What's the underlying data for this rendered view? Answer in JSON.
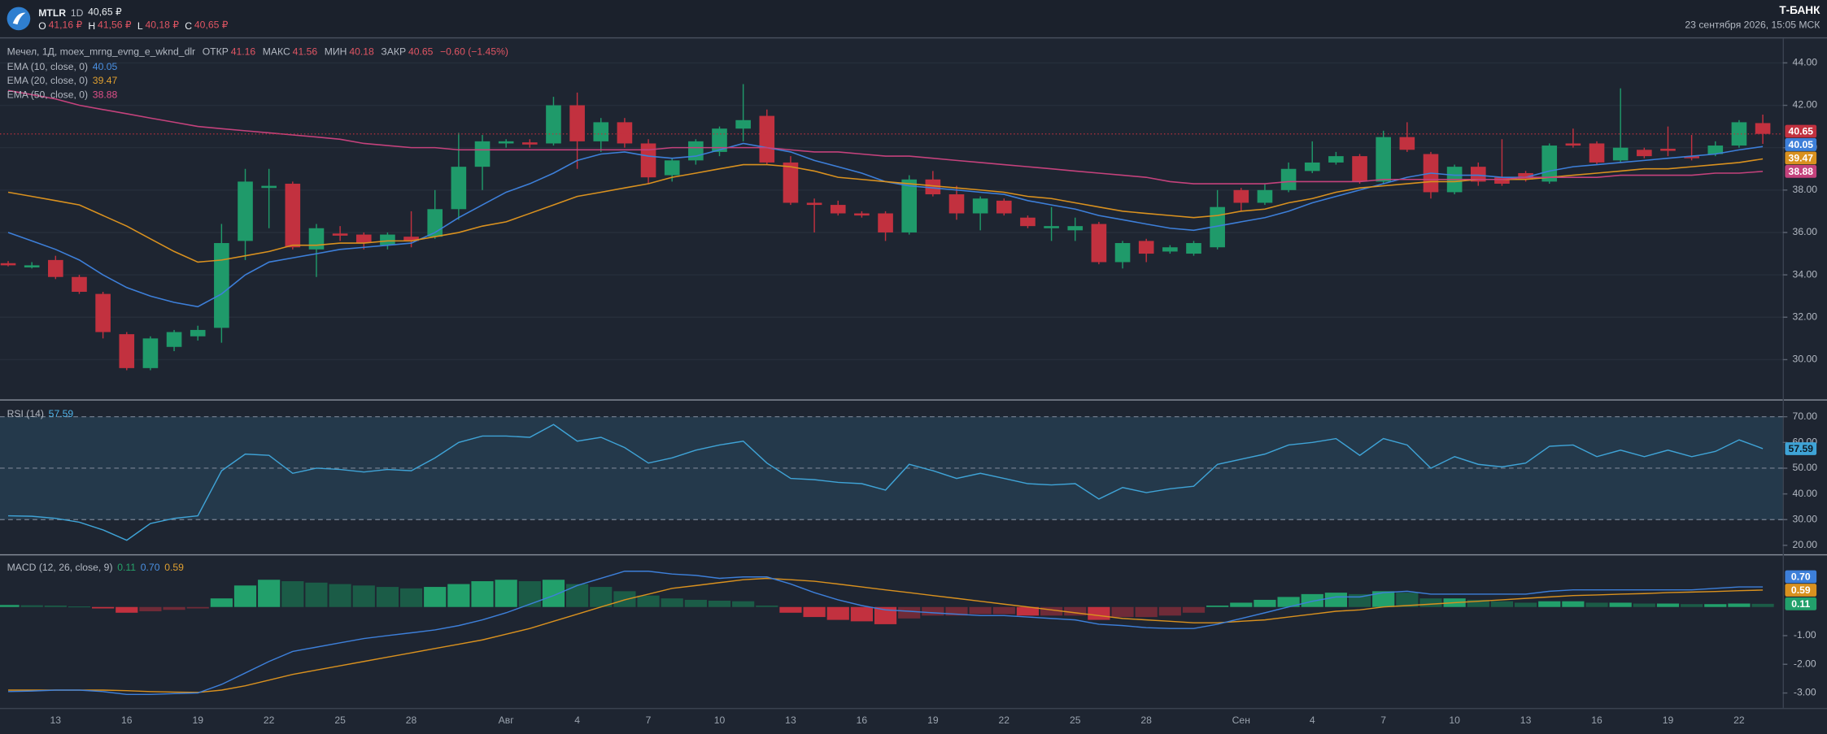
{
  "header": {
    "ticker": "MTLR",
    "interval": "1D",
    "price": "40,65 ₽",
    "ohlc": [
      {
        "key": "O",
        "value": "41,16 ₽"
      },
      {
        "key": "H",
        "value": "41,56 ₽"
      },
      {
        "key": "L",
        "value": "40,18 ₽"
      },
      {
        "key": "C",
        "value": "40,65 ₽"
      }
    ],
    "brand": "Т-БАНК",
    "datetime": "23 сентября 2026, 15:05 МСК"
  },
  "chart_data": [
    {
      "type": "candlestick",
      "title": "Мечел, 1Д, moex_mrng_evng_e_wknd_dlr",
      "stats": [
        {
          "key": "ОТКР",
          "value": "41.16"
        },
        {
          "key": "МАКС",
          "value": "41.56"
        },
        {
          "key": "МИН",
          "value": "40.18"
        },
        {
          "key": "ЗАКР",
          "value": "40.65"
        }
      ],
      "change": "−0.60 (−1.45%)",
      "up_color": "#1f9a6a",
      "down_color": "#c2313f",
      "last_label": "40.65",
      "open": [
        34.55,
        34.35,
        34.7,
        33.9,
        33.1,
        31.2,
        29.6,
        30.6,
        31.1,
        31.5,
        35.6,
        38.1,
        38.3,
        35.2,
        35.95,
        35.9,
        35.4,
        35.8,
        35.8,
        37.1,
        39.1,
        40.2,
        40.25,
        40.2,
        42.0,
        40.3,
        41.2,
        40.2,
        38.7,
        39.4,
        39.8,
        40.9,
        41.5,
        39.3,
        37.4,
        37.3,
        36.9,
        36.9,
        36.0,
        38.5,
        37.8,
        36.9,
        37.5,
        36.7,
        36.2,
        36.1,
        36.4,
        34.6,
        35.6,
        35.1,
        35.0,
        35.3,
        38.0,
        37.4,
        38.0,
        38.9,
        39.3,
        39.6,
        38.4,
        40.5,
        39.7,
        37.9,
        39.1,
        38.6,
        38.8,
        38.4,
        40.2,
        40.2,
        39.4,
        39.9,
        39.95,
        39.6,
        39.7,
        40.1,
        41.16
      ],
      "high": [
        34.65,
        34.6,
        34.9,
        34.0,
        33.2,
        31.3,
        31.1,
        31.4,
        31.6,
        36.4,
        39.0,
        39.0,
        38.4,
        36.4,
        36.3,
        36.0,
        36.0,
        37.0,
        38.0,
        40.7,
        40.6,
        40.4,
        40.4,
        42.4,
        42.6,
        41.4,
        41.4,
        40.4,
        39.5,
        40.4,
        41.0,
        43.0,
        41.8,
        39.6,
        37.6,
        37.5,
        37.0,
        37.0,
        38.7,
        38.9,
        38.2,
        37.7,
        37.6,
        36.8,
        37.2,
        36.7,
        36.5,
        35.6,
        35.7,
        35.4,
        35.6,
        38.0,
        38.1,
        38.3,
        39.3,
        40.3,
        39.8,
        39.7,
        40.8,
        41.2,
        39.8,
        39.2,
        39.3,
        40.4,
        38.9,
        40.2,
        40.9,
        40.3,
        42.8,
        40.0,
        41.0,
        40.6,
        40.3,
        41.3,
        41.56
      ],
      "low": [
        34.4,
        34.3,
        33.8,
        33.1,
        31.0,
        29.5,
        29.5,
        30.4,
        30.9,
        30.8,
        34.7,
        36.2,
        35.2,
        33.9,
        35.6,
        35.2,
        35.2,
        35.3,
        35.7,
        36.6,
        38.0,
        40.0,
        40.0,
        40.1,
        39.0,
        39.8,
        40.0,
        38.3,
        38.4,
        39.2,
        39.6,
        40.3,
        39.2,
        37.3,
        36.0,
        36.8,
        36.7,
        35.6,
        35.9,
        37.7,
        36.6,
        36.1,
        36.8,
        36.2,
        35.6,
        35.6,
        34.5,
        34.3,
        34.6,
        35.0,
        34.9,
        35.2,
        37.0,
        37.3,
        37.9,
        38.8,
        39.2,
        38.3,
        38.3,
        39.8,
        37.6,
        37.8,
        38.2,
        38.2,
        38.4,
        38.3,
        40.0,
        39.2,
        39.3,
        39.5,
        39.6,
        39.4,
        39.6,
        40.0,
        40.18
      ],
      "close": [
        34.45,
        34.45,
        33.9,
        33.2,
        31.3,
        29.6,
        31.0,
        31.3,
        31.4,
        35.5,
        38.4,
        38.2,
        35.3,
        36.2,
        35.85,
        35.5,
        35.9,
        35.6,
        37.1,
        39.1,
        40.3,
        40.3,
        40.15,
        42.0,
        40.3,
        41.2,
        40.2,
        38.6,
        39.4,
        40.3,
        40.9,
        41.3,
        39.3,
        37.4,
        37.3,
        36.9,
        36.8,
        36.0,
        38.5,
        37.8,
        36.9,
        37.6,
        36.9,
        36.3,
        36.3,
        36.3,
        34.6,
        35.5,
        35.0,
        35.3,
        35.5,
        37.2,
        37.4,
        38.0,
        39.0,
        39.3,
        39.6,
        38.4,
        40.5,
        39.9,
        37.9,
        39.1,
        38.4,
        38.3,
        38.5,
        40.1,
        40.1,
        39.3,
        40.0,
        39.6,
        39.85,
        39.5,
        40.1,
        41.2,
        40.65
      ],
      "series": [
        {
          "name": "EMA (10, close, 0)",
          "color": "#3d7fd9",
          "last_label": "40.05",
          "values": [
            36.0,
            35.6,
            35.2,
            34.7,
            34.0,
            33.4,
            33.0,
            32.7,
            32.5,
            33.1,
            34.0,
            34.6,
            34.8,
            35.0,
            35.2,
            35.3,
            35.4,
            35.5,
            36.0,
            36.7,
            37.3,
            37.9,
            38.3,
            38.8,
            39.4,
            39.7,
            39.8,
            39.6,
            39.5,
            39.6,
            39.9,
            40.2,
            40.0,
            39.8,
            39.4,
            39.1,
            38.8,
            38.4,
            38.2,
            38.1,
            38.0,
            37.9,
            37.8,
            37.5,
            37.3,
            37.1,
            36.8,
            36.6,
            36.4,
            36.2,
            36.1,
            36.3,
            36.5,
            36.7,
            37.0,
            37.4,
            37.7,
            38.0,
            38.3,
            38.6,
            38.8,
            38.7,
            38.7,
            38.6,
            38.6,
            38.9,
            39.1,
            39.2,
            39.3,
            39.4,
            39.5,
            39.6,
            39.7,
            39.9,
            40.05
          ]
        },
        {
          "name": "EMA (20, close, 0)",
          "color": "#d9911f",
          "last_label": "39.47",
          "values": [
            37.9,
            37.7,
            37.5,
            37.3,
            36.8,
            36.3,
            35.7,
            35.1,
            34.6,
            34.7,
            34.9,
            35.1,
            35.4,
            35.4,
            35.5,
            35.5,
            35.6,
            35.6,
            35.8,
            36.0,
            36.3,
            36.5,
            36.9,
            37.3,
            37.7,
            37.9,
            38.1,
            38.3,
            38.6,
            38.8,
            39.0,
            39.2,
            39.2,
            39.1,
            38.9,
            38.6,
            38.5,
            38.4,
            38.3,
            38.2,
            38.1,
            38.0,
            37.9,
            37.7,
            37.6,
            37.4,
            37.2,
            37.0,
            36.9,
            36.8,
            36.7,
            36.8,
            37.0,
            37.1,
            37.4,
            37.6,
            37.9,
            38.1,
            38.2,
            38.3,
            38.4,
            38.4,
            38.5,
            38.5,
            38.5,
            38.6,
            38.7,
            38.8,
            38.9,
            39.0,
            39.0,
            39.1,
            39.2,
            39.3,
            39.47
          ]
        },
        {
          "name": "EMA (50, close, 0)",
          "color": "#c4427c",
          "last_label": "38.88",
          "values": [
            42.7,
            42.5,
            42.3,
            42.0,
            41.8,
            41.6,
            41.4,
            41.2,
            41.0,
            40.9,
            40.8,
            40.7,
            40.6,
            40.5,
            40.4,
            40.2,
            40.1,
            40.0,
            40.0,
            39.9,
            39.9,
            39.9,
            39.9,
            39.9,
            39.9,
            39.9,
            39.9,
            39.9,
            40.0,
            40.0,
            40.0,
            40.0,
            40.0,
            39.9,
            39.8,
            39.8,
            39.7,
            39.6,
            39.6,
            39.5,
            39.4,
            39.3,
            39.2,
            39.1,
            39.0,
            38.9,
            38.8,
            38.7,
            38.6,
            38.4,
            38.3,
            38.3,
            38.3,
            38.3,
            38.4,
            38.4,
            38.4,
            38.4,
            38.5,
            38.5,
            38.5,
            38.5,
            38.5,
            38.5,
            38.6,
            38.6,
            38.6,
            38.6,
            38.7,
            38.7,
            38.7,
            38.7,
            38.8,
            38.8,
            38.88
          ]
        }
      ],
      "ylim": [
        28.18,
        45.1
      ],
      "yticks": [
        {
          "value": 30,
          "label": "30.00"
        },
        {
          "value": 32,
          "label": "32.00"
        },
        {
          "value": 34,
          "label": "34.00"
        },
        {
          "value": 36,
          "label": "36.00"
        },
        {
          "value": 38,
          "label": "38.00"
        },
        {
          "value": 40,
          "label": "40.00"
        },
        {
          "value": 42,
          "label": "42.00"
        },
        {
          "value": 44,
          "label": "44.00"
        }
      ]
    },
    {
      "type": "line",
      "series": [
        {
          "name": "RSI (14)",
          "color": "#3fa3d6",
          "last_label": "57.59",
          "values": [
            31.5,
            31.3,
            30.5,
            29,
            26,
            22,
            28.5,
            30.5,
            31.5,
            49,
            55.5,
            55,
            48,
            50,
            49.5,
            48.5,
            49.5,
            49,
            54,
            60,
            62.5,
            62.5,
            62,
            67,
            60.5,
            62,
            58,
            52,
            54,
            57,
            59,
            60.5,
            52,
            46,
            45.5,
            44.5,
            44,
            41.5,
            51.5,
            49,
            46,
            48,
            46,
            44,
            43.5,
            44,
            38,
            42.5,
            40.5,
            42,
            43,
            51.5,
            53.5,
            55.5,
            59,
            60,
            61.5,
            55,
            61.5,
            59,
            50,
            54.5,
            51.5,
            50.5,
            52,
            58.5,
            59,
            54.5,
            57,
            54.5,
            57,
            54.5,
            56.5,
            61,
            57.59
          ]
        }
      ],
      "levels": [
        30,
        50,
        70
      ],
      "ylim": [
        17,
        75.4
      ],
      "yticks": [
        {
          "value": 20,
          "label": "20.00"
        },
        {
          "value": 30,
          "label": "30.00"
        },
        {
          "value": 40,
          "label": "40.00"
        },
        {
          "value": 50,
          "label": "50.00"
        },
        {
          "value": 60,
          "label": "60.00"
        },
        {
          "value": 70,
          "label": "70.00"
        }
      ]
    },
    {
      "type": "macd",
      "title": "MACD (12, 26, close, 9)",
      "categories": [
        null,
        null,
        "13",
        null,
        null,
        "16",
        null,
        null,
        "19",
        null,
        null,
        "22",
        null,
        null,
        "25",
        null,
        null,
        "28",
        null,
        null,
        null,
        "Авг",
        null,
        null,
        "4",
        null,
        null,
        "7",
        null,
        null,
        "10",
        null,
        null,
        "13",
        null,
        null,
        "16",
        null,
        null,
        "19",
        null,
        null,
        "22",
        null,
        null,
        "25",
        null,
        null,
        "28",
        null,
        null,
        null,
        "Сен",
        null,
        null,
        "4",
        null,
        null,
        "7",
        null,
        null,
        "10",
        null,
        null,
        "13",
        null,
        null,
        "16",
        null,
        null,
        "19",
        null,
        null,
        "22",
        null
      ],
      "histogram": {
        "colors": [
          "#22a06b",
          "#1b5c47",
          "#6f2b38",
          "#c2313f"
        ],
        "last_label": "0.11",
        "values": [
          0.07,
          0.06,
          0.05,
          0.02,
          -0.05,
          -0.2,
          -0.15,
          -0.1,
          -0.05,
          0.3,
          0.75,
          0.95,
          0.9,
          0.85,
          0.8,
          0.75,
          0.7,
          0.65,
          0.7,
          0.8,
          0.9,
          0.95,
          0.9,
          0.95,
          0.8,
          0.7,
          0.55,
          0.4,
          0.3,
          0.25,
          0.22,
          0.2,
          0.05,
          -0.2,
          -0.35,
          -0.45,
          -0.5,
          -0.6,
          -0.4,
          -0.3,
          -0.3,
          -0.25,
          -0.25,
          -0.3,
          -0.3,
          -0.3,
          -0.45,
          -0.35,
          -0.35,
          -0.3,
          -0.2,
          0.05,
          0.15,
          0.25,
          0.35,
          0.45,
          0.5,
          0.45,
          0.55,
          0.5,
          0.3,
          0.3,
          0.25,
          0.2,
          0.15,
          0.2,
          0.2,
          0.15,
          0.15,
          0.12,
          0.12,
          0.1,
          0.1,
          0.12,
          0.11
        ]
      },
      "macd": {
        "color": "#3d7fd9",
        "last_label": "0.70",
        "values": [
          -2.95,
          -2.93,
          -2.9,
          -2.9,
          -2.95,
          -3.05,
          -3.05,
          -3.02,
          -3.0,
          -2.7,
          -2.3,
          -1.9,
          -1.55,
          -1.4,
          -1.25,
          -1.1,
          -1.0,
          -0.9,
          -0.8,
          -0.65,
          -0.45,
          -0.2,
          0.1,
          0.4,
          0.75,
          1.0,
          1.25,
          1.25,
          1.15,
          1.1,
          1.0,
          1.05,
          1.05,
          0.8,
          0.5,
          0.25,
          0.05,
          -0.1,
          -0.15,
          -0.2,
          -0.25,
          -0.3,
          -0.3,
          -0.35,
          -0.4,
          -0.45,
          -0.6,
          -0.65,
          -0.72,
          -0.75,
          -0.75,
          -0.6,
          -0.4,
          -0.2,
          0.0,
          0.2,
          0.35,
          0.35,
          0.5,
          0.55,
          0.45,
          0.45,
          0.45,
          0.45,
          0.45,
          0.55,
          0.6,
          0.6,
          0.6,
          0.6,
          0.6,
          0.6,
          0.65,
          0.7,
          0.7
        ]
      },
      "signal": {
        "color": "#d9911f",
        "last_label": "0.59",
        "values": [
          -2.9,
          -2.9,
          -2.9,
          -2.9,
          -2.9,
          -2.92,
          -2.95,
          -2.97,
          -2.98,
          -2.9,
          -2.75,
          -2.55,
          -2.35,
          -2.2,
          -2.05,
          -1.9,
          -1.75,
          -1.6,
          -1.45,
          -1.3,
          -1.15,
          -0.95,
          -0.75,
          -0.5,
          -0.25,
          0.0,
          0.25,
          0.45,
          0.65,
          0.75,
          0.85,
          0.95,
          1.0,
          0.95,
          0.9,
          0.8,
          0.7,
          0.6,
          0.5,
          0.4,
          0.3,
          0.2,
          0.1,
          0.0,
          -0.1,
          -0.2,
          -0.3,
          -0.4,
          -0.45,
          -0.5,
          -0.55,
          -0.55,
          -0.5,
          -0.45,
          -0.35,
          -0.25,
          -0.15,
          -0.1,
          0.0,
          0.05,
          0.1,
          0.15,
          0.2,
          0.25,
          0.3,
          0.35,
          0.4,
          0.42,
          0.45,
          0.47,
          0.5,
          0.52,
          0.54,
          0.57,
          0.59
        ]
      },
      "ylim": [
        -3.48,
        1.76
      ],
      "yticks": [
        {
          "value": -3,
          "label": "-3.00"
        },
        {
          "value": -2,
          "label": "-2.00"
        },
        {
          "value": -1,
          "label": "-1.00"
        }
      ]
    }
  ]
}
